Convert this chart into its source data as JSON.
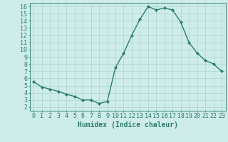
{
  "x": [
    0,
    1,
    2,
    3,
    4,
    5,
    6,
    7,
    8,
    9,
    10,
    11,
    12,
    13,
    14,
    15,
    16,
    17,
    18,
    19,
    20,
    21,
    22,
    23
  ],
  "y": [
    5.5,
    4.8,
    4.5,
    4.2,
    3.8,
    3.5,
    3.0,
    3.0,
    2.5,
    2.8,
    7.5,
    9.5,
    12.0,
    14.2,
    16.0,
    15.5,
    15.8,
    15.5,
    13.8,
    11.0,
    9.5,
    8.5,
    8.0,
    7.0
  ],
  "line_color": "#2a7d6e",
  "marker": "D",
  "marker_size": 2.0,
  "bg_color": "#ceecea",
  "grid_color": "#aed8d4",
  "xlabel": "Humidex (Indice chaleur)",
  "xlim": [
    -0.5,
    23.5
  ],
  "ylim": [
    1.5,
    16.5
  ],
  "yticks": [
    2,
    3,
    4,
    5,
    6,
    7,
    8,
    9,
    10,
    11,
    12,
    13,
    14,
    15,
    16
  ],
  "xticks": [
    0,
    1,
    2,
    3,
    4,
    5,
    6,
    7,
    8,
    9,
    10,
    11,
    12,
    13,
    14,
    15,
    16,
    17,
    18,
    19,
    20,
    21,
    22,
    23
  ],
  "tick_color": "#2a7d6e",
  "spine_color": "#2a7d6e",
  "xlabel_fontsize": 7,
  "tick_fontsize": 6,
  "line_width": 1.0
}
